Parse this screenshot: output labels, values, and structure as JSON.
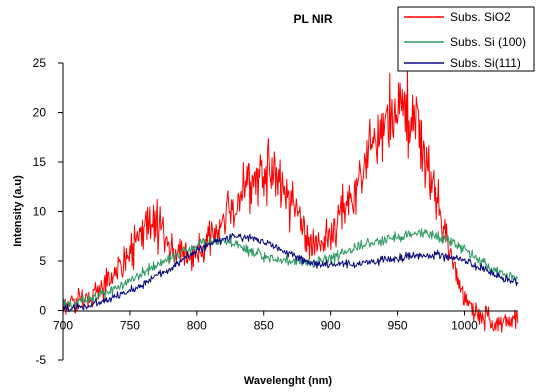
{
  "chart_data": {
    "type": "line",
    "title": "PL NIR",
    "xlabel": "Wavelenght (nm)",
    "ylabel": "Intensity (a.u)",
    "xlim": [
      700,
      1040
    ],
    "ylim": [
      -5,
      25
    ],
    "x_ticks": [
      "700",
      "750",
      "800",
      "850",
      "900",
      "950",
      "1000"
    ],
    "y_ticks": [
      "-5",
      "0",
      "5",
      "10",
      "15",
      "20",
      "25"
    ],
    "grid": false,
    "legend_position": "top-right",
    "x": [
      700,
      710,
      720,
      730,
      740,
      750,
      760,
      765,
      770,
      780,
      790,
      800,
      810,
      820,
      830,
      840,
      850,
      855,
      860,
      870,
      880,
      890,
      900,
      910,
      920,
      930,
      940,
      950,
      955,
      960,
      970,
      980,
      990,
      1000,
      1010,
      1020,
      1030,
      1040
    ],
    "series": [
      {
        "name": "Subs. SiO2",
        "color": "#ff0000",
        "noise": 1.6,
        "values": [
          0.3,
          0.8,
          1.5,
          2.5,
          4.0,
          5.8,
          8.0,
          8.8,
          8.3,
          6.5,
          5.5,
          5.5,
          7.0,
          9.0,
          11.0,
          13.0,
          14.0,
          14.2,
          13.5,
          11.0,
          8.5,
          6.3,
          7.5,
          10.0,
          13.0,
          16.0,
          18.5,
          20.0,
          20.3,
          19.5,
          16.0,
          10.5,
          5.0,
          1.5,
          -0.5,
          -1.0,
          -0.8,
          -1.0
        ]
      },
      {
        "name": "Subs. Si (100)",
        "color": "#2e9a63",
        "noise": 0.45,
        "values": [
          0.5,
          0.8,
          1.2,
          1.7,
          2.3,
          3.0,
          3.8,
          4.2,
          4.6,
          5.3,
          6.0,
          6.6,
          7.0,
          7.0,
          6.6,
          6.0,
          5.5,
          5.3,
          5.2,
          5.0,
          4.9,
          4.9,
          5.2,
          5.8,
          6.3,
          6.8,
          7.2,
          7.5,
          7.6,
          7.8,
          7.8,
          7.6,
          7.0,
          6.2,
          5.2,
          4.2,
          3.5,
          3.1
        ]
      },
      {
        "name": "Subs. Si(111)",
        "color": "#0a0a80",
        "noise": 0.35,
        "values": [
          0.2,
          0.3,
          0.5,
          0.9,
          1.4,
          2.0,
          2.7,
          3.1,
          3.5,
          4.3,
          5.2,
          6.0,
          6.7,
          7.2,
          7.5,
          7.4,
          7.0,
          6.7,
          6.3,
          5.7,
          5.0,
          4.7,
          4.6,
          4.6,
          4.7,
          4.9,
          5.1,
          5.3,
          5.4,
          5.5,
          5.6,
          5.6,
          5.4,
          5.0,
          4.4,
          3.7,
          3.1,
          2.8
        ]
      }
    ]
  }
}
